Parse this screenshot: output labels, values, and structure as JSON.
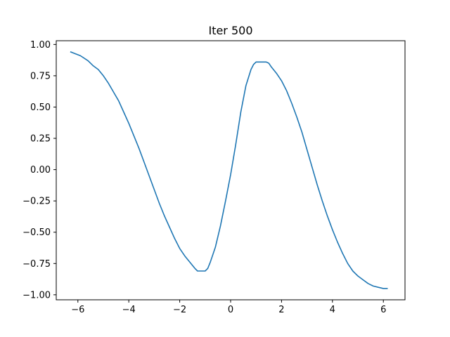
{
  "chart_data": {
    "type": "line",
    "title": "Iter 500",
    "xlabel": "",
    "ylabel": "",
    "xlim": [
      -6.85,
      6.85
    ],
    "ylim": [
      -1.04,
      1.03
    ],
    "grid": false,
    "x_ticks": [
      -6,
      -4,
      -2,
      0,
      2,
      4,
      6
    ],
    "x_tick_labels": [
      "−6",
      "−4",
      "−2",
      "0",
      "2",
      "4",
      "6"
    ],
    "y_ticks": [
      1.0,
      0.75,
      0.5,
      0.25,
      0.0,
      -0.25,
      -0.5,
      -0.75,
      -1.0
    ],
    "y_tick_labels": [
      "1.00",
      "0.75",
      "0.50",
      "0.25",
      "0.00",
      "−0.25",
      "−0.50",
      "−0.75",
      "−1.00"
    ],
    "series": [
      {
        "color": "#1f77b4",
        "x": [
          -6.28,
          -5.9,
          -5.6,
          -5.4,
          -5.2,
          -5.0,
          -4.8,
          -4.6,
          -4.4,
          -4.2,
          -4.0,
          -3.8,
          -3.6,
          -3.4,
          -3.2,
          -3.0,
          -2.8,
          -2.6,
          -2.4,
          -2.2,
          -2.0,
          -1.8,
          -1.6,
          -1.4,
          -1.3,
          -1.2,
          -1.1,
          -1.0,
          -0.9,
          -0.8,
          -0.7,
          -0.6,
          -0.4,
          -0.2,
          0.0,
          0.2,
          0.4,
          0.6,
          0.8,
          0.9,
          1.0,
          1.1,
          1.2,
          1.3,
          1.4,
          1.5,
          1.6,
          1.8,
          2.0,
          2.2,
          2.4,
          2.6,
          2.8,
          3.0,
          3.2,
          3.4,
          3.6,
          3.8,
          4.0,
          4.2,
          4.4,
          4.6,
          4.8,
          5.0,
          5.2,
          5.4,
          5.6,
          5.8,
          6.0,
          6.15
        ],
        "y": [
          0.94,
          0.91,
          0.87,
          0.83,
          0.8,
          0.75,
          0.69,
          0.62,
          0.55,
          0.46,
          0.37,
          0.27,
          0.17,
          0.06,
          -0.05,
          -0.16,
          -0.27,
          -0.37,
          -0.46,
          -0.55,
          -0.63,
          -0.69,
          -0.74,
          -0.79,
          -0.81,
          -0.81,
          -0.81,
          -0.81,
          -0.79,
          -0.74,
          -0.68,
          -0.62,
          -0.45,
          -0.25,
          -0.04,
          0.2,
          0.46,
          0.67,
          0.8,
          0.84,
          0.86,
          0.86,
          0.86,
          0.86,
          0.86,
          0.85,
          0.82,
          0.77,
          0.71,
          0.63,
          0.53,
          0.42,
          0.3,
          0.16,
          0.02,
          -0.12,
          -0.25,
          -0.37,
          -0.48,
          -0.58,
          -0.67,
          -0.75,
          -0.81,
          -0.85,
          -0.88,
          -0.91,
          -0.93,
          -0.94,
          -0.95,
          -0.95
        ]
      }
    ]
  }
}
